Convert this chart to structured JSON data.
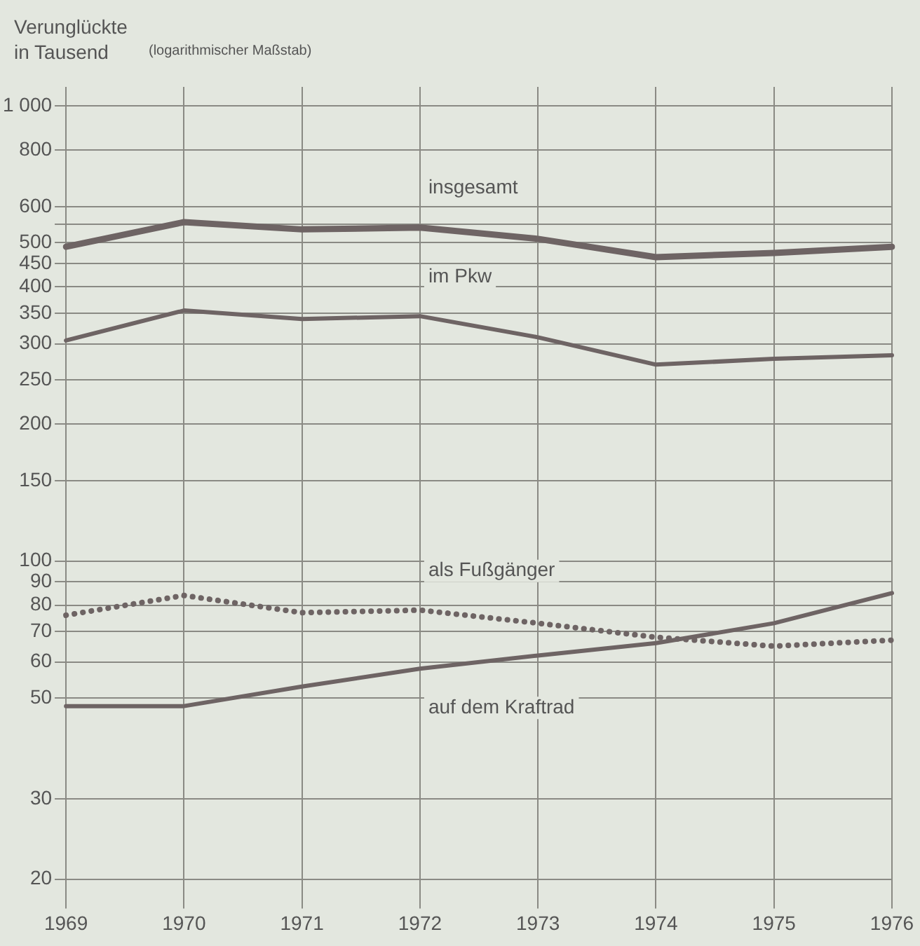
{
  "chart_data": {
    "type": "line",
    "ylabel": "Verunglückte in Tausend",
    "subtitle": "(logarithmischer Maßstab)",
    "categories": [
      "1969",
      "1970",
      "1971",
      "1972",
      "1973",
      "1974",
      "1975",
      "1976"
    ],
    "series": [
      {
        "name": "insgesamt",
        "color": "#6e6464",
        "values": [
          490,
          555,
          535,
          540,
          510,
          465,
          475,
          490
        ]
      },
      {
        "name": "im Pkw",
        "color": "#6e6464",
        "values": [
          305,
          355,
          340,
          345,
          310,
          270,
          278,
          283
        ]
      },
      {
        "name": "als Fußgänger",
        "color": "#6e6464",
        "line_style": "dotted",
        "values": [
          76,
          84,
          77,
          78,
          73,
          68,
          65,
          67
        ]
      },
      {
        "name": "auf dem Kraftrad",
        "color": "#6e6464",
        "values": [
          48,
          48,
          53,
          58,
          62,
          66,
          73,
          85
        ]
      }
    ],
    "log": "y",
    "ylim": [
      18,
      1100
    ],
    "yticks": [
      20,
      30,
      50,
      60,
      70,
      80,
      90,
      100,
      150,
      200,
      250,
      300,
      350,
      400,
      450,
      500,
      {
        "value": 550,
        "label": null
      },
      600,
      800,
      {
        "value": 1000,
        "label": "1 000"
      }
    ],
    "grid": true,
    "legend": false,
    "marker": "none",
    "line_style": "solid"
  }
}
